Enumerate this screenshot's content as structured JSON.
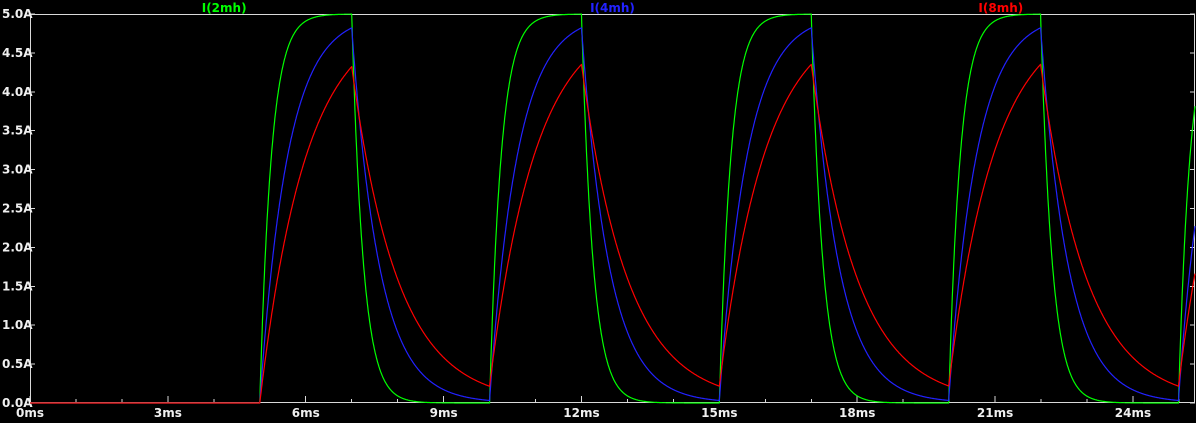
{
  "window": {
    "background": "#000000",
    "axis_color": "#d9d9d9",
    "tick_label_color": "#f0f0f0"
  },
  "chart_data": {
    "type": "line",
    "title": "",
    "x_unit": "ms",
    "y_unit": "A",
    "xlim_ms": [
      0,
      25.35
    ],
    "ylim_A": [
      0,
      5
    ],
    "grid": false,
    "legend_position": "top-inside",
    "x_ticks": [
      {
        "ms": 0,
        "label": "0ms"
      },
      {
        "ms": 3,
        "label": "3ms"
      },
      {
        "ms": 6,
        "label": "6ms"
      },
      {
        "ms": 9,
        "label": "9ms"
      },
      {
        "ms": 12,
        "label": "12ms"
      },
      {
        "ms": 15,
        "label": "15ms"
      },
      {
        "ms": 18,
        "label": "18ms"
      },
      {
        "ms": 21,
        "label": "21ms"
      },
      {
        "ms": 24,
        "label": "24ms"
      }
    ],
    "x_minor_tick_ms": 1,
    "y_ticks": [
      {
        "A": 0.0,
        "label": "0.0A"
      },
      {
        "A": 0.5,
        "label": "0.5A"
      },
      {
        "A": 1.0,
        "label": "1.0A"
      },
      {
        "A": 1.5,
        "label": "1.5A"
      },
      {
        "A": 2.0,
        "label": "2.0A"
      },
      {
        "A": 2.5,
        "label": "2.5A"
      },
      {
        "A": 3.0,
        "label": "3.0A"
      },
      {
        "A": 3.5,
        "label": "3.5A"
      },
      {
        "A": 4.0,
        "label": "4.0A"
      },
      {
        "A": 4.5,
        "label": "4.5A"
      },
      {
        "A": 5.0,
        "label": "5.0A"
      }
    ],
    "stimulus": {
      "amplitude_A": 5,
      "delay_ms": 5,
      "on_ms": 2,
      "period_ms": 5
    },
    "series": [
      {
        "name": "I(2mh)",
        "color": "#00ff00",
        "tau_ms": 0.25,
        "steady_state_peak_A": 5.0,
        "steady_state_min_A": 0.0
      },
      {
        "name": "I(4mh)",
        "color": "#2222ff",
        "tau_ms": 0.6,
        "steady_state_peak_A": 4.82,
        "steady_state_min_A": 0.03
      },
      {
        "name": "I(8mh)",
        "color": "#ff0000",
        "tau_ms": 1.0,
        "steady_state_peak_A": 4.32,
        "steady_state_min_A": 0.22
      }
    ]
  }
}
